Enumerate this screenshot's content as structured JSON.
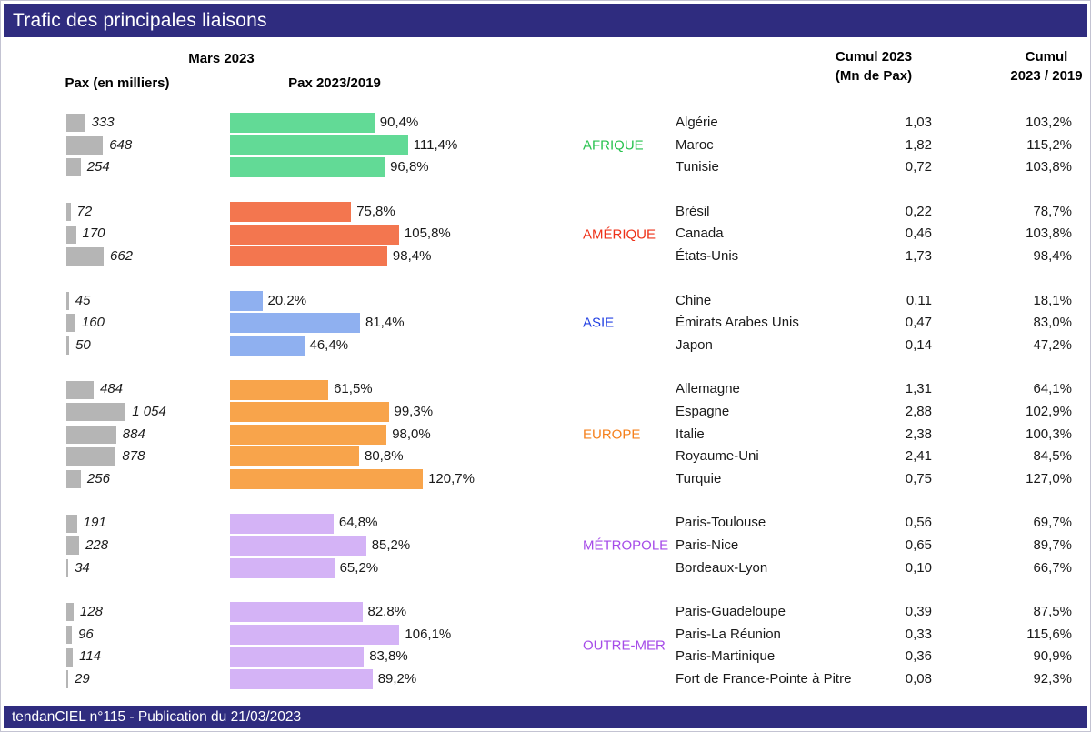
{
  "header": {
    "title": "Trafic des principales liaisons"
  },
  "columns": {
    "month": "Mars 2023",
    "pax": "Pax (en milliers)",
    "pax_ratio": "Pax 2023/2019",
    "cumul_line1": "Cumul 2023",
    "cumul_line2": "(Mn de Pax)",
    "cumul_ratio_line1": "Cumul",
    "cumul_ratio_line2": "2023 / 2019"
  },
  "footer": {
    "text": "tendanCIEL n°115 - Publication du 21/03/2023"
  },
  "colors": {
    "header_bar": "#2F2C7F",
    "footer_bar": "#2F2C7F",
    "gray_bar": "#B5B5B5",
    "text": "#1a1a1a"
  },
  "chart_data": {
    "type": "bar",
    "title": "Trafic des principales liaisons",
    "xlabel": "Pax 2023/2019 (%)",
    "ylabel": "",
    "xlim": [
      0,
      130
    ],
    "grid": false,
    "legend_position": "none",
    "groups": [
      {
        "name": "AFRIQUE",
        "label_color": "#27C24E",
        "bar_color": "#62DA96",
        "rows": [
          {
            "country": "Algérie",
            "pax_thousands": 333,
            "pax_label": "333",
            "pax_ratio_pct": 90.4,
            "pax_ratio_label": "90,4%",
            "cumul_mn_pax": 1.03,
            "cumul_label": "1,03",
            "cumul_ratio_pct": 103.2,
            "cumul_ratio_label": "103,2%"
          },
          {
            "country": "Maroc",
            "pax_thousands": 648,
            "pax_label": "648",
            "pax_ratio_pct": 111.4,
            "pax_ratio_label": "111,4%",
            "cumul_mn_pax": 1.82,
            "cumul_label": "1,82",
            "cumul_ratio_pct": 115.2,
            "cumul_ratio_label": "115,2%"
          },
          {
            "country": "Tunisie",
            "pax_thousands": 254,
            "pax_label": "254",
            "pax_ratio_pct": 96.8,
            "pax_ratio_label": "96,8%",
            "cumul_mn_pax": 0.72,
            "cumul_label": "0,72",
            "cumul_ratio_pct": 103.8,
            "cumul_ratio_label": "103,8%"
          }
        ]
      },
      {
        "name": "AMÉRIQUE",
        "label_color": "#EE3118",
        "bar_color": "#F3764F",
        "rows": [
          {
            "country": "Brésil",
            "pax_thousands": 72,
            "pax_label": "72",
            "pax_ratio_pct": 75.8,
            "pax_ratio_label": "75,8%",
            "cumul_mn_pax": 0.22,
            "cumul_label": "0,22",
            "cumul_ratio_pct": 78.7,
            "cumul_ratio_label": "78,7%"
          },
          {
            "country": "Canada",
            "pax_thousands": 170,
            "pax_label": "170",
            "pax_ratio_pct": 105.8,
            "pax_ratio_label": "105,8%",
            "cumul_mn_pax": 0.46,
            "cumul_label": "0,46",
            "cumul_ratio_pct": 103.8,
            "cumul_ratio_label": "103,8%"
          },
          {
            "country": "États-Unis",
            "pax_thousands": 662,
            "pax_label": "662",
            "pax_ratio_pct": 98.4,
            "pax_ratio_label": "98,4%",
            "cumul_mn_pax": 1.73,
            "cumul_label": "1,73",
            "cumul_ratio_pct": 98.4,
            "cumul_ratio_label": "98,4%"
          }
        ]
      },
      {
        "name": "ASIE",
        "label_color": "#2442E3",
        "bar_color": "#8FB0F0",
        "rows": [
          {
            "country": "Chine",
            "pax_thousands": 45,
            "pax_label": "45",
            "pax_ratio_pct": 20.2,
            "pax_ratio_label": "20,2%",
            "cumul_mn_pax": 0.11,
            "cumul_label": "0,11",
            "cumul_ratio_pct": 18.1,
            "cumul_ratio_label": "18,1%"
          },
          {
            "country": "Émirats Arabes Unis",
            "pax_thousands": 160,
            "pax_label": "160",
            "pax_ratio_pct": 81.4,
            "pax_ratio_label": "81,4%",
            "cumul_mn_pax": 0.47,
            "cumul_label": "0,47",
            "cumul_ratio_pct": 83.0,
            "cumul_ratio_label": "83,0%"
          },
          {
            "country": "Japon",
            "pax_thousands": 50,
            "pax_label": "50",
            "pax_ratio_pct": 46.4,
            "pax_ratio_label": "46,4%",
            "cumul_mn_pax": 0.14,
            "cumul_label": "0,14",
            "cumul_ratio_pct": 47.2,
            "cumul_ratio_label": "47,2%"
          }
        ]
      },
      {
        "name": "EUROPE",
        "label_color": "#F5801C",
        "bar_color": "#F8A44B",
        "rows": [
          {
            "country": "Allemagne",
            "pax_thousands": 484,
            "pax_label": "484",
            "pax_ratio_pct": 61.5,
            "pax_ratio_label": "61,5%",
            "cumul_mn_pax": 1.31,
            "cumul_label": "1,31",
            "cumul_ratio_pct": 64.1,
            "cumul_ratio_label": "64,1%"
          },
          {
            "country": "Espagne",
            "pax_thousands": 1054,
            "pax_label": "1 054",
            "pax_ratio_pct": 99.3,
            "pax_ratio_label": "99,3%",
            "cumul_mn_pax": 2.88,
            "cumul_label": "2,88",
            "cumul_ratio_pct": 102.9,
            "cumul_ratio_label": "102,9%"
          },
          {
            "country": "Italie",
            "pax_thousands": 884,
            "pax_label": "884",
            "pax_ratio_pct": 98.0,
            "pax_ratio_label": "98,0%",
            "cumul_mn_pax": 2.38,
            "cumul_label": "2,38",
            "cumul_ratio_pct": 100.3,
            "cumul_ratio_label": "100,3%"
          },
          {
            "country": "Royaume-Uni",
            "pax_thousands": 878,
            "pax_label": "878",
            "pax_ratio_pct": 80.8,
            "pax_ratio_label": "80,8%",
            "cumul_mn_pax": 2.41,
            "cumul_label": "2,41",
            "cumul_ratio_pct": 84.5,
            "cumul_ratio_label": "84,5%"
          },
          {
            "country": "Turquie",
            "pax_thousands": 256,
            "pax_label": "256",
            "pax_ratio_pct": 120.7,
            "pax_ratio_label": "120,7%",
            "cumul_mn_pax": 0.75,
            "cumul_label": "0,75",
            "cumul_ratio_pct": 127.0,
            "cumul_ratio_label": "127,0%"
          }
        ]
      },
      {
        "name": "MÉTROPOLE",
        "label_color": "#A54BE8",
        "bar_color": "#D4B3F6",
        "rows": [
          {
            "country": "Paris-Toulouse",
            "pax_thousands": 191,
            "pax_label": "191",
            "pax_ratio_pct": 64.8,
            "pax_ratio_label": "64,8%",
            "cumul_mn_pax": 0.56,
            "cumul_label": "0,56",
            "cumul_ratio_pct": 69.7,
            "cumul_ratio_label": "69,7%"
          },
          {
            "country": "Paris-Nice",
            "pax_thousands": 228,
            "pax_label": "228",
            "pax_ratio_pct": 85.2,
            "pax_ratio_label": "85,2%",
            "cumul_mn_pax": 0.65,
            "cumul_label": "0,65",
            "cumul_ratio_pct": 89.7,
            "cumul_ratio_label": "89,7%"
          },
          {
            "country": "Bordeaux-Lyon",
            "pax_thousands": 34,
            "pax_label": "34",
            "pax_ratio_pct": 65.2,
            "pax_ratio_label": "65,2%",
            "cumul_mn_pax": 0.1,
            "cumul_label": "0,10",
            "cumul_ratio_pct": 66.7,
            "cumul_ratio_label": "66,7%"
          }
        ]
      },
      {
        "name": "OUTRE-MER",
        "label_color": "#A54BE8",
        "bar_color": "#D4B3F6",
        "rows": [
          {
            "country": "Paris-Guadeloupe",
            "pax_thousands": 128,
            "pax_label": "128",
            "pax_ratio_pct": 82.8,
            "pax_ratio_label": "82,8%",
            "cumul_mn_pax": 0.39,
            "cumul_label": "0,39",
            "cumul_ratio_pct": 87.5,
            "cumul_ratio_label": "87,5%"
          },
          {
            "country": "Paris-La Réunion",
            "pax_thousands": 96,
            "pax_label": "96",
            "pax_ratio_pct": 106.1,
            "pax_ratio_label": "106,1%",
            "cumul_mn_pax": 0.33,
            "cumul_label": "0,33",
            "cumul_ratio_pct": 115.6,
            "cumul_ratio_label": "115,6%"
          },
          {
            "country": "Paris-Martinique",
            "pax_thousands": 114,
            "pax_label": "114",
            "pax_ratio_pct": 83.8,
            "pax_ratio_label": "83,8%",
            "cumul_mn_pax": 0.36,
            "cumul_label": "0,36",
            "cumul_ratio_pct": 90.9,
            "cumul_ratio_label": "90,9%"
          },
          {
            "country": "Fort de France-Pointe à Pitre",
            "pax_thousands": 29,
            "pax_label": "29",
            "pax_ratio_pct": 89.2,
            "pax_ratio_label": "89,2%",
            "cumul_mn_pax": 0.08,
            "cumul_label": "0,08",
            "cumul_ratio_pct": 92.3,
            "cumul_ratio_label": "92,3%"
          }
        ]
      }
    ]
  }
}
